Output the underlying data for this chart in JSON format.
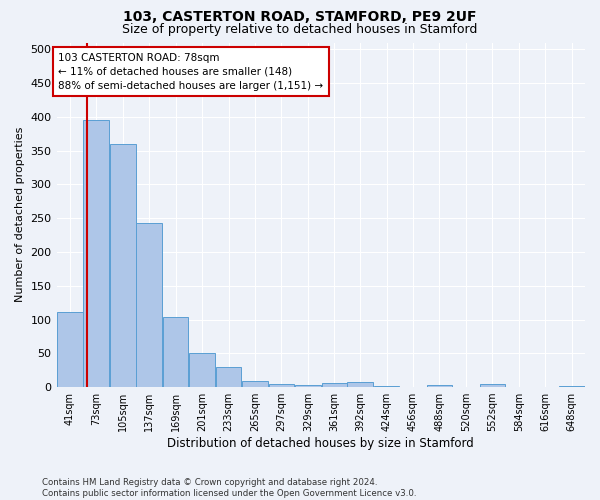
{
  "title": "103, CASTERTON ROAD, STAMFORD, PE9 2UF",
  "subtitle": "Size of property relative to detached houses in Stamford",
  "xlabel": "Distribution of detached houses by size in Stamford",
  "ylabel": "Number of detached properties",
  "bar_color": "#aec6e8",
  "bar_edge_color": "#5a9fd4",
  "vline_color": "#cc0000",
  "vline_x": 78,
  "annotation_text": "103 CASTERTON ROAD: 78sqm\n← 11% of detached houses are smaller (148)\n88% of semi-detached houses are larger (1,151) →",
  "annotation_box_color": "#ffffff",
  "annotation_box_edge": "#cc0000",
  "bin_edges": [
    41,
    73,
    105,
    137,
    169,
    201,
    233,
    265,
    297,
    329,
    361,
    392,
    424,
    456,
    488,
    520,
    552,
    584,
    616,
    648,
    680
  ],
  "bar_heights": [
    111,
    395,
    360,
    243,
    104,
    50,
    30,
    9,
    4,
    3,
    6,
    8,
    1,
    0,
    3,
    0,
    5,
    0,
    0,
    2
  ],
  "ylim": [
    0,
    510
  ],
  "yticks": [
    0,
    50,
    100,
    150,
    200,
    250,
    300,
    350,
    400,
    450,
    500
  ],
  "background_color": "#eef2f9",
  "grid_color": "#ffffff",
  "footer_text": "Contains HM Land Registry data © Crown copyright and database right 2024.\nContains public sector information licensed under the Open Government Licence v3.0.",
  "tick_label_fontsize": 7,
  "title_fontsize": 10,
  "subtitle_fontsize": 9
}
